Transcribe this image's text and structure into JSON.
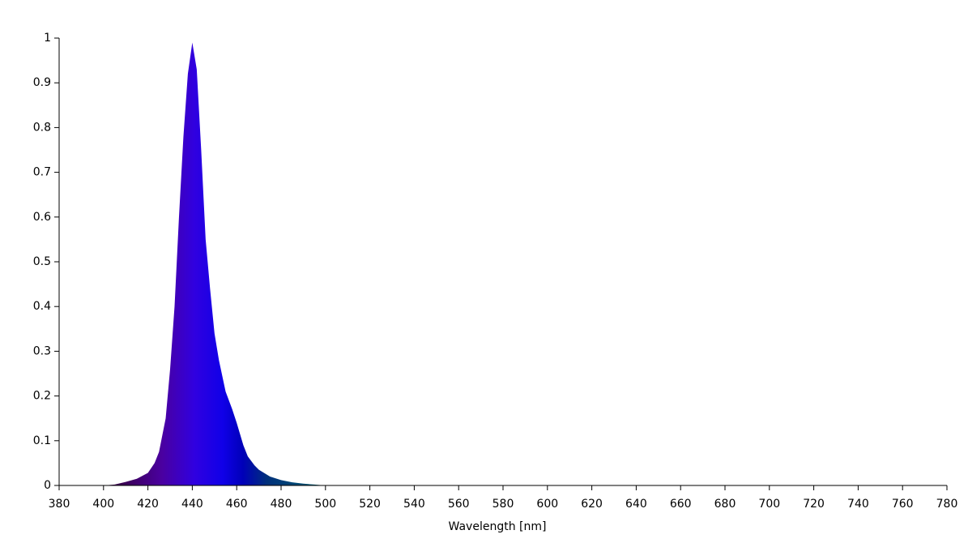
{
  "chart_data": {
    "type": "area",
    "x_label": "Wavelength [nm]",
    "x": [
      380,
      400,
      405,
      410,
      415,
      420,
      423,
      425,
      428,
      430,
      432,
      434,
      436,
      438,
      440,
      442,
      444,
      446,
      448,
      450,
      452,
      455,
      458,
      460,
      463,
      465,
      468,
      470,
      475,
      480,
      485,
      490,
      495,
      500,
      780
    ],
    "values": [
      0,
      0,
      0.002,
      0.008,
      0.015,
      0.028,
      0.05,
      0.075,
      0.15,
      0.26,
      0.4,
      0.6,
      0.78,
      0.92,
      0.99,
      0.93,
      0.75,
      0.55,
      0.44,
      0.34,
      0.28,
      0.21,
      0.17,
      0.14,
      0.09,
      0.065,
      0.045,
      0.035,
      0.02,
      0.012,
      0.007,
      0.004,
      0.002,
      0,
      0
    ],
    "color": "#2a00ff",
    "xlim": [
      380,
      780
    ],
    "xticks": [
      380,
      400,
      420,
      440,
      460,
      480,
      500,
      520,
      540,
      560,
      580,
      600,
      620,
      640,
      660,
      680,
      700,
      720,
      740,
      760,
      780
    ],
    "ylim": [
      0,
      1
    ],
    "yticks": [
      0,
      0.1,
      0.2,
      0.3,
      0.4,
      0.5,
      0.6,
      0.7,
      0.8,
      0.9,
      1
    ],
    "grid": false
  }
}
